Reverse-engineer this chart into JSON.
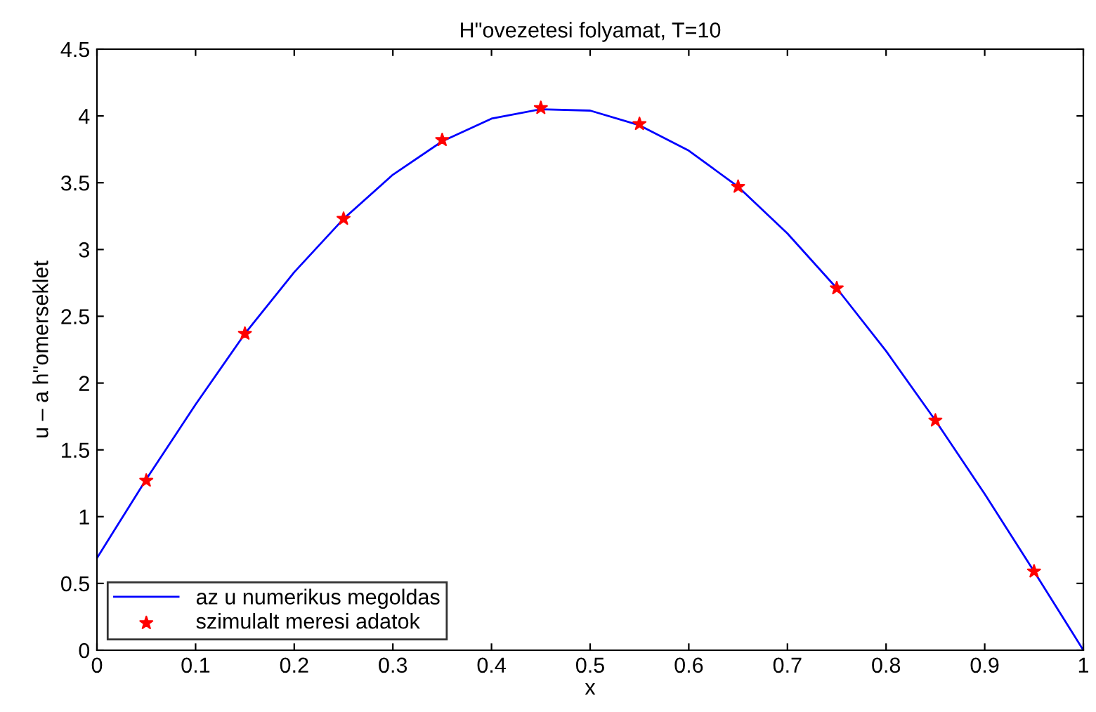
{
  "chart_data": {
    "type": "line",
    "title": "H\"ovezetesi folyamat, T=10",
    "xlabel": "x",
    "ylabel": "u – a h\"omerseklet",
    "xlim": [
      0,
      1
    ],
    "ylim": [
      0,
      4.5
    ],
    "xticks": [
      0,
      0.1,
      0.2,
      0.3,
      0.4,
      0.5,
      0.6,
      0.7,
      0.8,
      0.9,
      1
    ],
    "yticks": [
      0,
      0.5,
      1,
      1.5,
      2,
      2.5,
      3,
      3.5,
      4,
      4.5
    ],
    "grid": false,
    "legend": "bottom left",
    "series": [
      {
        "name": "az u numerikus megoldas",
        "color": "#0000ff",
        "marker": "none",
        "line_style": "solid",
        "x": [
          0,
          0.05,
          0.1,
          0.15,
          0.2,
          0.25,
          0.3,
          0.35,
          0.4,
          0.45,
          0.5,
          0.55,
          0.6,
          0.65,
          0.7,
          0.75,
          0.8,
          0.85,
          0.9,
          0.95,
          1.0
        ],
        "values": [
          0.69,
          1.28,
          1.84,
          2.37,
          2.83,
          3.23,
          3.56,
          3.81,
          3.98,
          4.05,
          4.04,
          3.93,
          3.74,
          3.47,
          3.12,
          2.71,
          2.24,
          1.72,
          1.17,
          0.59,
          0.0
        ]
      },
      {
        "name": "szimulalt meresi adatok",
        "type": "scatter",
        "color": "#ff0000",
        "marker": "star",
        "x": [
          0.05,
          0.15,
          0.25,
          0.35,
          0.45,
          0.55,
          0.65,
          0.75,
          0.85,
          0.95
        ],
        "values": [
          1.27,
          2.37,
          3.23,
          3.82,
          4.06,
          3.94,
          3.47,
          2.71,
          1.72,
          0.59
        ]
      }
    ]
  }
}
